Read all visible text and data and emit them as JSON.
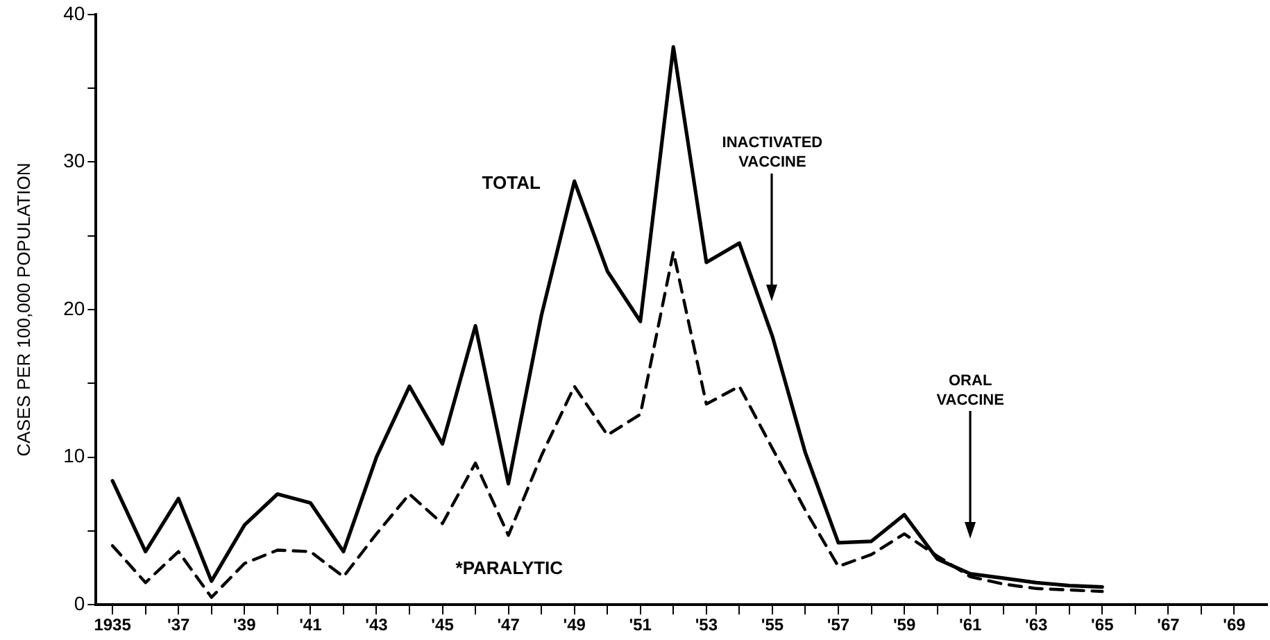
{
  "chart_data": {
    "type": "line",
    "ylabel": "CASES PER 100,000 POPULATION",
    "xlim": [
      1934.5,
      1970
    ],
    "xticks": [
      {
        "value": 1935,
        "label": "1935"
      },
      {
        "value": 1936,
        "label": null
      },
      {
        "value": 1937,
        "label": "'37"
      },
      {
        "value": 1938,
        "label": null
      },
      {
        "value": 1939,
        "label": "'39"
      },
      {
        "value": 1940,
        "label": null
      },
      {
        "value": 1941,
        "label": "'41"
      },
      {
        "value": 1942,
        "label": null
      },
      {
        "value": 1943,
        "label": "'43"
      },
      {
        "value": 1944,
        "label": null
      },
      {
        "value": 1945,
        "label": "'45"
      },
      {
        "value": 1946,
        "label": null
      },
      {
        "value": 1947,
        "label": "'47"
      },
      {
        "value": 1948,
        "label": null
      },
      {
        "value": 1949,
        "label": "'49"
      },
      {
        "value": 1950,
        "label": null
      },
      {
        "value": 1951,
        "label": "'51"
      },
      {
        "value": 1952,
        "label": null
      },
      {
        "value": 1953,
        "label": "'53"
      },
      {
        "value": 1954,
        "label": null
      },
      {
        "value": 1955,
        "label": "'55"
      },
      {
        "value": 1956,
        "label": null
      },
      {
        "value": 1957,
        "label": "'57"
      },
      {
        "value": 1958,
        "label": null
      },
      {
        "value": 1959,
        "label": "'59"
      },
      {
        "value": 1960,
        "label": null
      },
      {
        "value": 1961,
        "label": "'61"
      },
      {
        "value": 1962,
        "label": null
      },
      {
        "value": 1963,
        "label": "'63"
      },
      {
        "value": 1964,
        "label": null
      },
      {
        "value": 1965,
        "label": "'65"
      },
      {
        "value": 1966,
        "label": null
      },
      {
        "value": 1967,
        "label": "'67"
      },
      {
        "value": 1968,
        "label": null
      },
      {
        "value": 1969,
        "label": "'69"
      }
    ],
    "ylim": [
      0,
      40
    ],
    "yticks": [
      0,
      {
        "value": 5,
        "label": null
      },
      10,
      {
        "value": 15,
        "label": null
      },
      20,
      {
        "value": 25,
        "label": null
      },
      30,
      {
        "value": 35,
        "label": null
      },
      40
    ],
    "grid": false,
    "legend": false,
    "marker": "none",
    "series": [
      {
        "name": "TOTAL",
        "color": "#000000",
        "line_style": "solid",
        "x": [
          1935,
          1936,
          1937,
          1938,
          1939,
          1940,
          1941,
          1942,
          1943,
          1944,
          1945,
          1946,
          1947,
          1948,
          1949,
          1950,
          1951,
          1952,
          1953,
          1954,
          1955,
          1956,
          1957,
          1958,
          1959,
          1960,
          1961,
          1962,
          1963,
          1964,
          1965
        ],
        "values": [
          8.4,
          3.6,
          7.2,
          1.6,
          5.4,
          7.5,
          6.9,
          3.6,
          10,
          14.8,
          10.9,
          18.9,
          8.2,
          19.6,
          28.7,
          22.6,
          19.2,
          37.8,
          23.2,
          24.5,
          18.2,
          10.3,
          4.2,
          4.3,
          6.1,
          3.1,
          2.1,
          1.8,
          1.5,
          1.3,
          1.2
        ]
      },
      {
        "name": "*PARALYTIC",
        "color": "#000000",
        "line_style": "dashed",
        "x": [
          1935,
          1936,
          1937,
          1938,
          1939,
          1940,
          1941,
          1942,
          1943,
          1944,
          1945,
          1946,
          1947,
          1948,
          1949,
          1950,
          1951,
          1952,
          1953,
          1954,
          1955,
          1956,
          1957,
          1958,
          1959,
          1960,
          1961,
          1962,
          1963,
          1964,
          1965
        ],
        "values": [
          4,
          1.5,
          3.6,
          0.5,
          2.8,
          3.7,
          3.6,
          1.9,
          4.8,
          7.5,
          5.5,
          9.6,
          4.7,
          10.1,
          14.8,
          11.5,
          12.9,
          23.9,
          13.6,
          14.8,
          10.6,
          6.4,
          2.6,
          3.4,
          4.8,
          3.3,
          1.9,
          1.4,
          1.1,
          1,
          0.9
        ]
      }
    ],
    "ref_lines": [
      {
        "axis": "x",
        "value": 1955,
        "label": "INACTIVATED VACCINE"
      },
      {
        "axis": "x",
        "value": 1961,
        "label": "ORAL VACCINE"
      }
    ]
  }
}
